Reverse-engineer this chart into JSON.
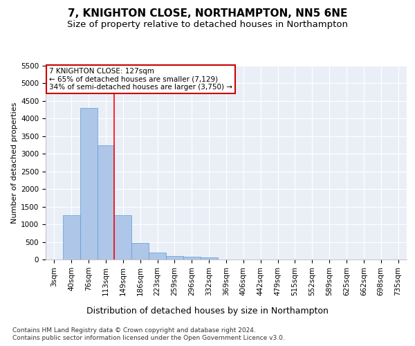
{
  "title1": "7, KNIGHTON CLOSE, NORTHAMPTON, NN5 6NE",
  "title2": "Size of property relative to detached houses in Northampton",
  "xlabel": "Distribution of detached houses by size in Northampton",
  "ylabel": "Number of detached properties",
  "categories": [
    "3sqm",
    "40sqm",
    "76sqm",
    "113sqm",
    "149sqm",
    "186sqm",
    "223sqm",
    "259sqm",
    "296sqm",
    "332sqm",
    "369sqm",
    "406sqm",
    "442sqm",
    "479sqm",
    "515sqm",
    "552sqm",
    "589sqm",
    "625sqm",
    "662sqm",
    "698sqm",
    "735sqm"
  ],
  "values": [
    0,
    1250,
    4300,
    3250,
    1250,
    475,
    200,
    100,
    75,
    50,
    0,
    0,
    0,
    0,
    0,
    0,
    0,
    0,
    0,
    0,
    0
  ],
  "bar_color": "#aec6e8",
  "bar_edge_color": "#5b9bd5",
  "red_line_x": 3.5,
  "annotation_text": "7 KNIGHTON CLOSE: 127sqm\n← 65% of detached houses are smaller (7,129)\n34% of semi-detached houses are larger (3,750) →",
  "annotation_box_color": "#ffffff",
  "annotation_box_edge_color": "#cc0000",
  "ylim": [
    0,
    5500
  ],
  "yticks": [
    0,
    500,
    1000,
    1500,
    2000,
    2500,
    3000,
    3500,
    4000,
    4500,
    5000,
    5500
  ],
  "footer1": "Contains HM Land Registry data © Crown copyright and database right 2024.",
  "footer2": "Contains public sector information licensed under the Open Government Licence v3.0.",
  "bg_color": "#ffffff",
  "plot_bg_color": "#eaeff7",
  "grid_color": "#ffffff",
  "title1_fontsize": 11,
  "title2_fontsize": 9.5,
  "xlabel_fontsize": 9,
  "ylabel_fontsize": 8,
  "tick_fontsize": 7.5,
  "ann_fontsize": 7.5,
  "footer_fontsize": 6.5
}
